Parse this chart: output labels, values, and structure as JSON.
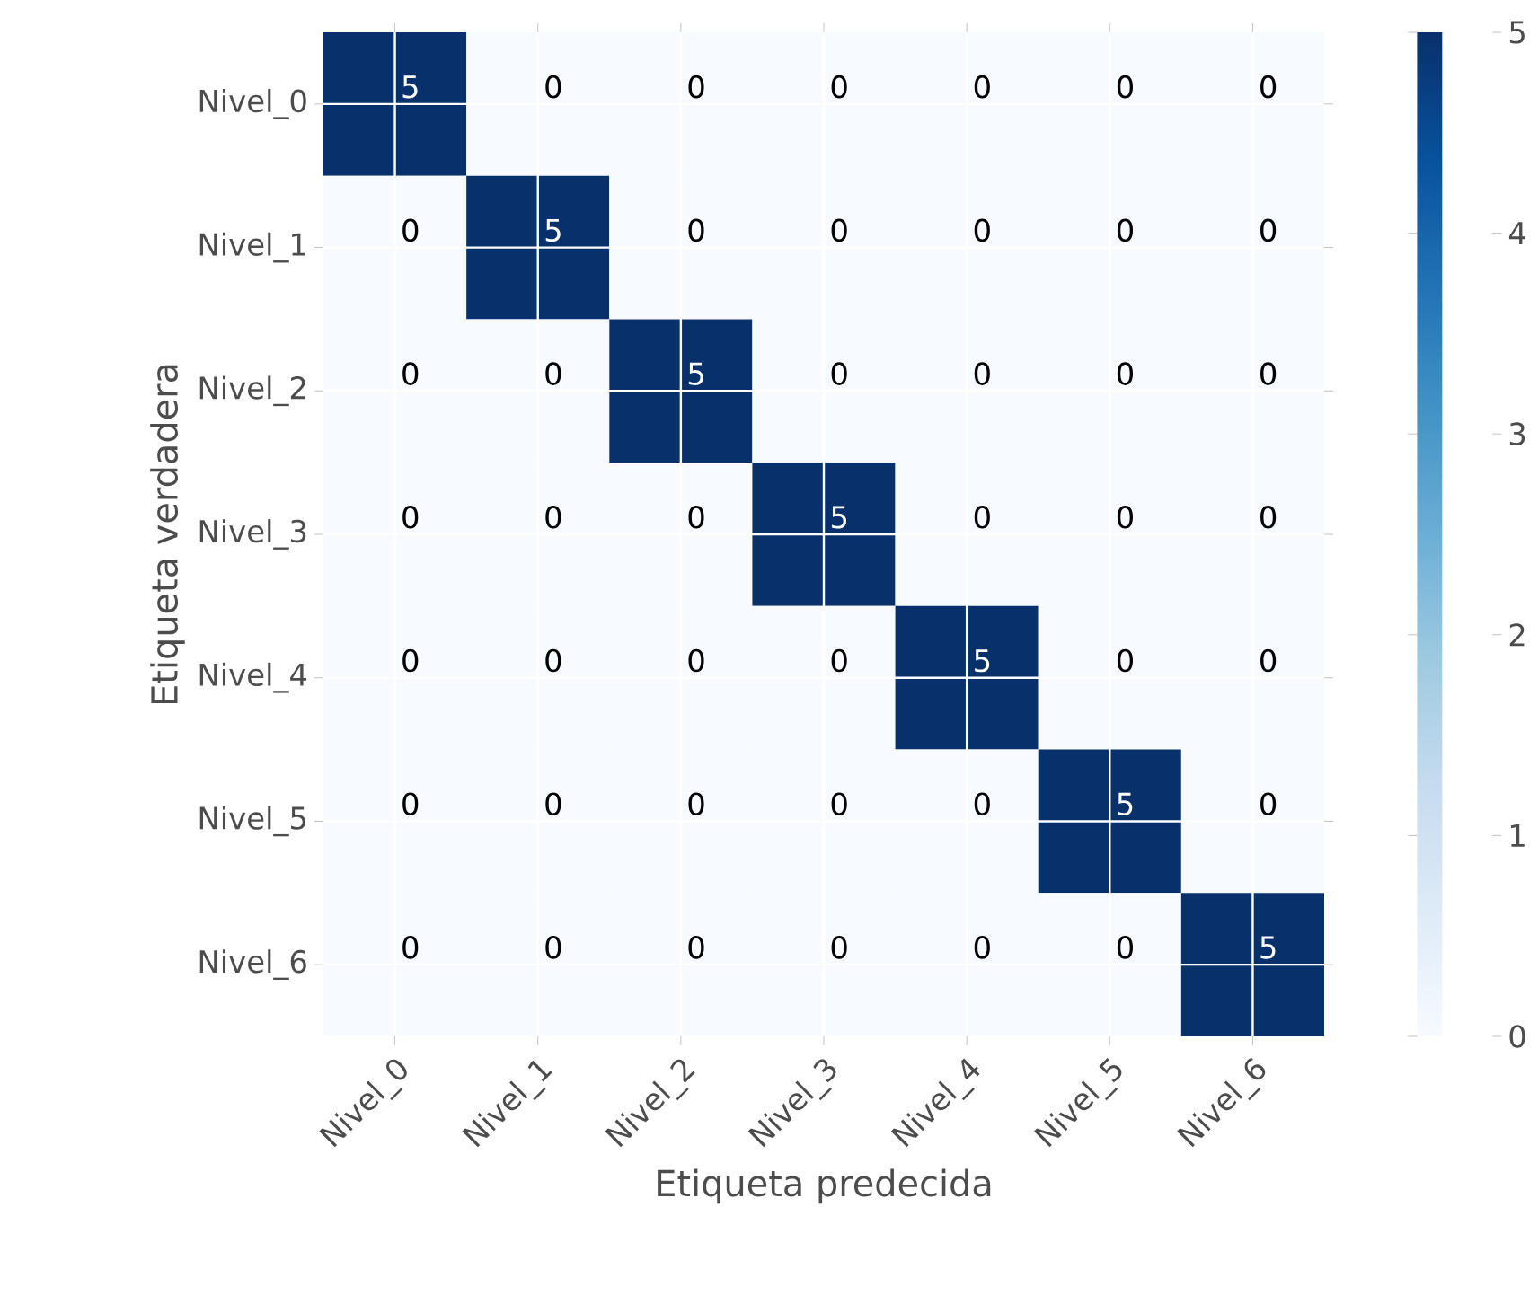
{
  "chart_data": {
    "type": "heatmap",
    "xlabel": "Etiqueta predecida",
    "ylabel": "Etiqueta verdadera",
    "categories": [
      "Nivel_0",
      "Nivel_1",
      "Nivel_2",
      "Nivel_3",
      "Nivel_4",
      "Nivel_5",
      "Nivel_6"
    ],
    "y_categories": [
      "Nivel_0",
      "Nivel_1",
      "Nivel_2",
      "Nivel_3",
      "Nivel_4",
      "Nivel_5",
      "Nivel_6"
    ],
    "cells": [
      [
        5,
        0,
        0,
        0,
        0,
        0,
        0
      ],
      [
        0,
        5,
        0,
        0,
        0,
        0,
        0
      ],
      [
        0,
        0,
        5,
        0,
        0,
        0,
        0
      ],
      [
        0,
        0,
        0,
        5,
        0,
        0,
        0
      ],
      [
        0,
        0,
        0,
        0,
        5,
        0,
        0
      ],
      [
        0,
        0,
        0,
        0,
        0,
        5,
        0
      ],
      [
        0,
        0,
        0,
        0,
        0,
        0,
        5
      ]
    ],
    "clim": [
      0,
      5
    ],
    "cticks": [
      0,
      1,
      2,
      3,
      4,
      5
    ],
    "data_labels": true,
    "grid": true
  }
}
